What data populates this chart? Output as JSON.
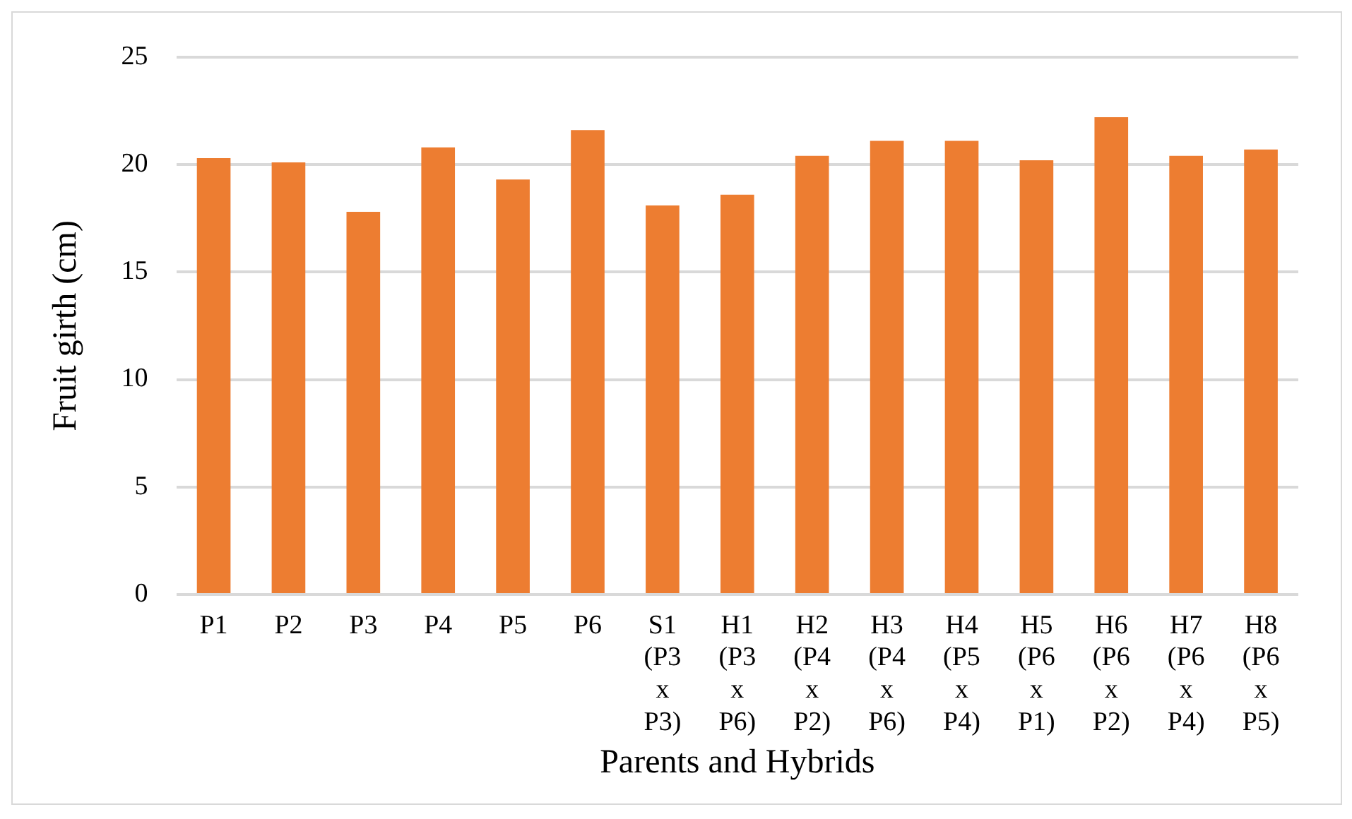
{
  "chart_data": {
    "type": "bar",
    "xlabel": "Parents and Hybrids",
    "ylabel": "Fruit girth (cm)",
    "categories": [
      "P1",
      "P2",
      "P3",
      "P4",
      "P5",
      "P6",
      "S1 (P3 x P3)",
      "H1 (P3 x P6)",
      "H2 (P4 x P2)",
      "H3 (P4 x P6)",
      "H4 (P5 x P4)",
      "H5 (P6 x P1)",
      "H6 (P6 x P2)",
      "H7 (P6 x P4)",
      "H8 (P6 x P5)"
    ],
    "values": [
      20.3,
      20.1,
      17.8,
      20.8,
      19.3,
      21.6,
      18.1,
      18.6,
      20.4,
      21.1,
      21.1,
      20.2,
      22.2,
      20.4,
      20.7
    ],
    "color": "#ed7d31",
    "ylim": [
      0,
      25
    ],
    "yticks": [
      0,
      5,
      10,
      15,
      20,
      25
    ],
    "grid": "y",
    "legend": false
  }
}
